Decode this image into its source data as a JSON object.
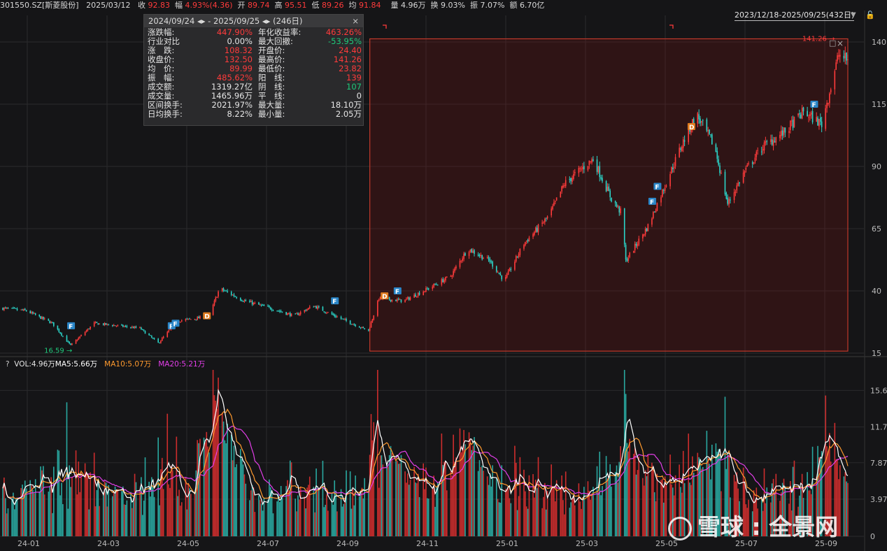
{
  "header": {
    "symbol": "301550.SZ[斯菱股份]",
    "date": "2025/03/12",
    "close_label": "收",
    "close_value": "92.83",
    "chg_label": "幅",
    "chg_value": "4.93%(4.36)",
    "open_label": "开",
    "open_value": "89.74",
    "high_label": "高",
    "high_value": "95.51",
    "low_label": "低",
    "low_value": "89.26",
    "avg_label": "均",
    "avg_value": "91.84",
    "vol_label": "量",
    "vol_value": "4.96万",
    "turn_label": "换",
    "turn_value": "9.03%",
    "amp_label": "振",
    "amp_value": "7.07%",
    "amount_label": "额",
    "amount_value": "6.70亿"
  },
  "range_selector": {
    "label": "2023/12/18-2025/09/25(432日)"
  },
  "stats_panel": {
    "header": "2024/09/24 ◂▸ - 2025/09/25 ◂▸  (246日)",
    "close_icon": "×",
    "rows": [
      {
        "l": "涨跌幅:",
        "v": "447.90%",
        "vc": "red",
        "l2": "年化收益率:",
        "v2": "463.26%",
        "v2c": "red"
      },
      {
        "l": "行业对比",
        "v": "0.00%",
        "vc": "white",
        "l2": "最大回撤:",
        "v2": "-53.95%",
        "v2c": "green"
      },
      {
        "l": "涨　跌:",
        "v": "108.32",
        "vc": "red",
        "l2": "开盘价:",
        "v2": "24.40",
        "v2c": "red"
      },
      {
        "l": "收盘价:",
        "v": "132.50",
        "vc": "red",
        "l2": "最高价:",
        "v2": "141.26",
        "v2c": "red"
      },
      {
        "l": "均　价:",
        "v": "89.99",
        "vc": "red",
        "l2": "最低价:",
        "v2": "23.82",
        "v2c": "red"
      },
      {
        "l": "振　幅:",
        "v": "485.62%",
        "vc": "red",
        "l2": "阳　线:",
        "v2": "139",
        "v2c": "red"
      },
      {
        "l": "成交额:",
        "v": "1319.27亿",
        "vc": "white",
        "l2": "阴　线:",
        "v2": "107",
        "v2c": "green"
      },
      {
        "l": "成交量:",
        "v": "1465.96万",
        "vc": "white",
        "l2": "平　线:",
        "v2": "0",
        "v2c": "white"
      },
      {
        "l": "区间换手:",
        "v": "2021.97%",
        "vc": "white",
        "l2": "最大量:",
        "v2": "18.10万",
        "v2c": "white"
      },
      {
        "l": "日均换手:",
        "v": "8.22%",
        "vc": "white",
        "l2": "最小量:",
        "v2": "2.05万",
        "v2c": "white"
      }
    ]
  },
  "volume_legend": {
    "help": "?",
    "vol": "VOL:4.96万",
    "ma5": "MA5:5.66万",
    "ma10": "MA10:5.07万",
    "ma20": "MA20:5.21万"
  },
  "watermark": {
    "text": "雪球 : 全景网"
  },
  "colors": {
    "up": "#ff3b3b",
    "down": "#2bd4c8",
    "ma5": "#ffffff",
    "ma10": "#ff9a2e",
    "ma20": "#e23ee8",
    "selection": "#c0392b",
    "label_green": "#1fc87a"
  },
  "chart_data": {
    "type": "candlestick",
    "x_ticks": [
      "24-01",
      "24-03",
      "24-05",
      "24-07",
      "24-09",
      "24-11",
      "25-01",
      "25-03",
      "25-05",
      "25-07",
      "25-09"
    ],
    "price_axis": {
      "ticks": [
        "15",
        "40",
        "65",
        "90",
        "115",
        "140"
      ],
      "ylim": [
        15,
        140
      ]
    },
    "volume_axis": {
      "ticks": [
        "0",
        "3.97",
        "7.87",
        "11.7",
        "15.6"
      ],
      "ylim": [
        0,
        18.1
      ]
    },
    "price_path": [
      {
        "date": "2023-12-18",
        "p": 33
      },
      {
        "date": "2024-01-05",
        "p": 32
      },
      {
        "date": "2024-01-25",
        "p": 27
      },
      {
        "date": "2024-02-08",
        "p": 18
      },
      {
        "date": "2024-02-26",
        "p": 27
      },
      {
        "date": "2024-03-15",
        "p": 26
      },
      {
        "date": "2024-04-01",
        "p": 25
      },
      {
        "date": "2024-04-15",
        "p": 19
      },
      {
        "date": "2024-04-30",
        "p": 28
      },
      {
        "date": "2024-05-15",
        "p": 29
      },
      {
        "date": "2024-05-24",
        "p": 30
      },
      {
        "date": "2024-06-01",
        "p": 41
      },
      {
        "date": "2024-06-20",
        "p": 36
      },
      {
        "date": "2024-07-10",
        "p": 33
      },
      {
        "date": "2024-07-28",
        "p": 30
      },
      {
        "date": "2024-08-12",
        "p": 34
      },
      {
        "date": "2024-08-28",
        "p": 30
      },
      {
        "date": "2024-09-23",
        "p": 24
      },
      {
        "date": "2024-10-01",
        "p": 37
      },
      {
        "date": "2024-10-20",
        "p": 36
      },
      {
        "date": "2024-11-08",
        "p": 41
      },
      {
        "date": "2024-11-25",
        "p": 46
      },
      {
        "date": "2024-12-08",
        "p": 57
      },
      {
        "date": "2024-12-25",
        "p": 52
      },
      {
        "date": "2025-01-05",
        "p": 44
      },
      {
        "date": "2025-01-20",
        "p": 59
      },
      {
        "date": "2025-02-08",
        "p": 70
      },
      {
        "date": "2025-02-20",
        "p": 83
      },
      {
        "date": "2025-03-05",
        "p": 89
      },
      {
        "date": "2025-03-14",
        "p": 93
      },
      {
        "date": "2025-03-28",
        "p": 77
      },
      {
        "date": "2025-04-05",
        "p": 71
      },
      {
        "date": "2025-04-08",
        "p": 52
      },
      {
        "date": "2025-04-25",
        "p": 66
      },
      {
        "date": "2025-05-10",
        "p": 85
      },
      {
        "date": "2025-05-22",
        "p": 100
      },
      {
        "date": "2025-06-01",
        "p": 111
      },
      {
        "date": "2025-06-15",
        "p": 98
      },
      {
        "date": "2025-06-25",
        "p": 75
      },
      {
        "date": "2025-07-08",
        "p": 88
      },
      {
        "date": "2025-07-22",
        "p": 98
      },
      {
        "date": "2025-08-08",
        "p": 104
      },
      {
        "date": "2025-08-22",
        "p": 112
      },
      {
        "date": "2025-09-05",
        "p": 107
      },
      {
        "date": "2025-09-18",
        "p": 135
      },
      {
        "date": "2025-09-25",
        "p": 132.5
      }
    ],
    "annotations": [
      {
        "text": "16.59",
        "date": "2024-02-08",
        "value": 16.59
      },
      {
        "text": "141.26",
        "date": "2025-09-18",
        "value": 141.26
      }
    ],
    "event_markers": [
      {
        "label": "F",
        "date": "2024-02-08",
        "value": 26
      },
      {
        "label": "F",
        "date": "2024-04-25",
        "value": 26
      },
      {
        "label": "F",
        "date": "2024-04-28",
        "value": 27
      },
      {
        "label": "D",
        "date": "2024-05-22",
        "value": 30
      },
      {
        "label": "F",
        "date": "2024-08-28",
        "value": 36
      },
      {
        "label": "D",
        "date": "2024-10-05",
        "value": 38
      },
      {
        "label": "F",
        "date": "2024-10-15",
        "value": 40
      },
      {
        "label": "F",
        "date": "2025-04-28",
        "value": 76
      },
      {
        "label": "F",
        "date": "2025-05-02",
        "value": 82
      },
      {
        "label": "D",
        "date": "2025-05-28",
        "value": 106
      },
      {
        "label": "F",
        "date": "2025-08-30",
        "value": 115
      }
    ],
    "selection": {
      "start": "2024-09-24",
      "end": "2025-09-25",
      "low": 15.8,
      "high": 141.26
    }
  }
}
